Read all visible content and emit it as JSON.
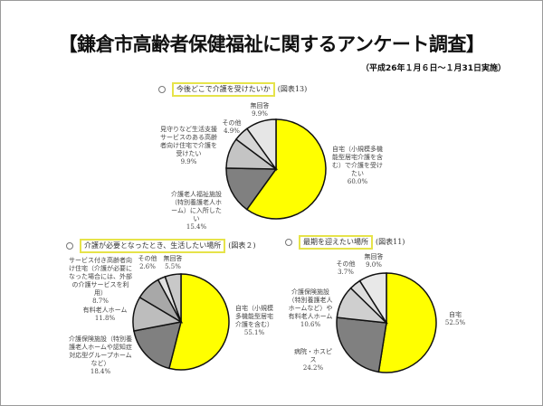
{
  "header": {
    "title": "【鎌倉市高齢者保健福祉に関するアンケート調査】",
    "subtitle": "（平成26年１月６日～１月31日実施）"
  },
  "chart_data": [
    {
      "type": "pie",
      "title": "今後どこで介護を受けたいか",
      "ref": "(図表13)",
      "labels": [
        "自宅（小規模多機能型居宅介護を含む）で介護を受けたい",
        "介護老人福祉施設（特別養護老人ホーム）に入所したい",
        "見守りなど生活支援サービスのある高齢者向け住宅で介護を受けたい",
        "その他",
        "無回答"
      ],
      "values": [
        60.0,
        15.4,
        9.9,
        4.9,
        9.9
      ],
      "colors": [
        "#ffff00",
        "#808080",
        "#c4c4c4",
        "#d6d6d6",
        "#e6e6e6"
      ]
    },
    {
      "type": "pie",
      "title": "介護が必要となったとき、生活したい場所",
      "ref": "(図表２)",
      "labels": [
        "自宅（小規模多機能型居宅介護を含む）",
        "介護保険施設（特別養護老人ホームや認知症対応型グループホームなど）",
        "有料老人ホーム",
        "サービス付き高齢者向け住宅（介護が必要になった場合には、外部の介護サービスを利用）",
        "その他",
        "無回答"
      ],
      "values": [
        55.1,
        18.4,
        11.8,
        8.7,
        2.6,
        5.5
      ],
      "colors": [
        "#ffff00",
        "#808080",
        "#bdbdbd",
        "#a8a8a8",
        "#e0e0e0",
        "#c8c8c8"
      ]
    },
    {
      "type": "pie",
      "title": "最期を迎えたい場所",
      "ref": "(図表11)",
      "labels": [
        "自宅",
        "病院・ホスピス",
        "介護保険施設（特別養護老人ホームなど）や有料老人ホーム",
        "その他",
        "無回答"
      ],
      "values": [
        52.5,
        24.2,
        10.6,
        3.7,
        9.0
      ],
      "colors": [
        "#ffff00",
        "#808080",
        "#cfcfcf",
        "#dedede",
        "#e8e8e8"
      ]
    }
  ]
}
